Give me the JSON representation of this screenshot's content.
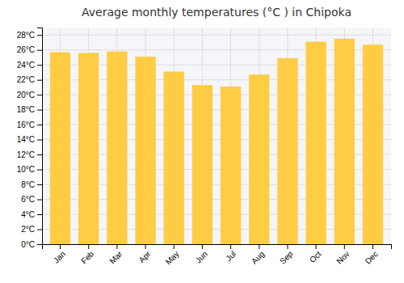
{
  "chart_data": {
    "type": "bar",
    "title": "Average monthly temperatures (°C ) in Chipoka",
    "categories": [
      "Jan",
      "Feb",
      "Mar",
      "Apr",
      "May",
      "Jun",
      "Jul",
      "Aug",
      "Sep",
      "Oct",
      "Nov",
      "Dec"
    ],
    "values": [
      25.7,
      25.6,
      25.8,
      25.1,
      23.1,
      21.3,
      21.1,
      22.7,
      24.9,
      27.1,
      27.5,
      26.7
    ],
    "color": "#FFCC44",
    "ylim": [
      0,
      29
    ],
    "yticks": [
      {
        "value": 0,
        "label": "0°C"
      },
      {
        "value": 2,
        "label": "2°C"
      },
      {
        "value": 4,
        "label": "4°C"
      },
      {
        "value": 6,
        "label": "6°C"
      },
      {
        "value": 8,
        "label": "8°C"
      },
      {
        "value": 10,
        "label": "10°C"
      },
      {
        "value": 12,
        "label": "12°C"
      },
      {
        "value": 14,
        "label": "14°C"
      },
      {
        "value": 16,
        "label": "16°C"
      },
      {
        "value": 18,
        "label": "18°C"
      },
      {
        "value": 20,
        "label": "20°C"
      },
      {
        "value": 22,
        "label": "22°C"
      },
      {
        "value": 24,
        "label": "24°C"
      },
      {
        "value": 26,
        "label": "26°C"
      },
      {
        "value": 28,
        "label": "28°C"
      }
    ],
    "grid": true
  }
}
